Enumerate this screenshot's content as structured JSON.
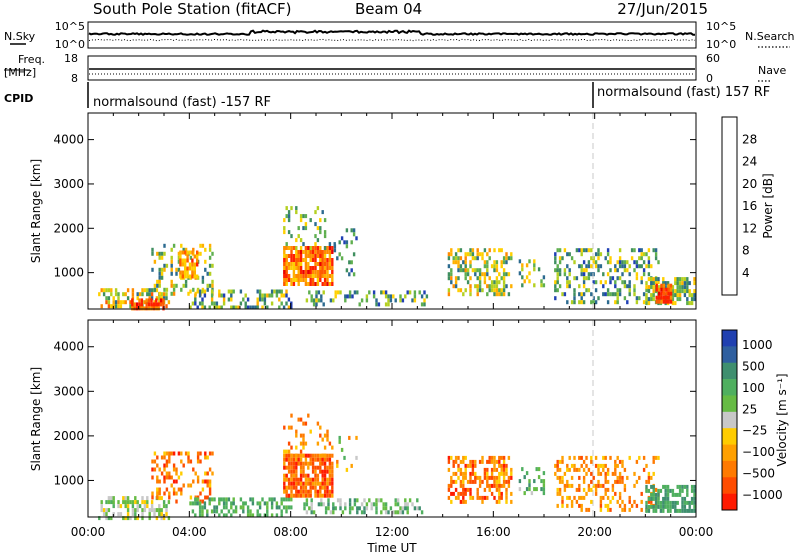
{
  "header": {
    "station": "South Pole Station (fitACF)",
    "beam": "Beam 04",
    "date": "27/Jun/2015"
  },
  "sky_panel": {
    "left_label": "N.Sky",
    "left_ticks": [
      "10^5",
      "10^0"
    ],
    "right_label": "N.Search",
    "right_ticks": [
      "10^5",
      "10^0"
    ]
  },
  "freq_panel": {
    "left_label_line1": "Freq.",
    "left_label_line2": "[MHz]",
    "left_ticks": [
      "18",
      "8"
    ],
    "right_label": "Nave",
    "right_ticks": [
      "60",
      "0"
    ]
  },
  "cpid": {
    "label": "CPID",
    "segments": [
      {
        "text": "normalsound (fast) -157 RF",
        "start_hour": 0
      },
      {
        "text": "normalsound (fast) 157 RF",
        "start_hour": 20
      }
    ]
  },
  "chart_data": [
    {
      "type": "heatmap",
      "quantity": "Power",
      "ylabel": "Slant Range [km]",
      "xlabel": "Time UT",
      "x_ticks": [
        "00:00",
        "04:00",
        "08:00",
        "12:00",
        "16:00",
        "20:00",
        "00:00"
      ],
      "xlim_hours": [
        0,
        24
      ],
      "y_ticks": [
        1000,
        2000,
        3000,
        4000
      ],
      "ylim_km": [
        180,
        4600
      ],
      "colorbar": {
        "label": "Power [dB]",
        "ticks": [
          4,
          8,
          12,
          16,
          20,
          24,
          28
        ],
        "range": [
          0,
          32
        ],
        "colors": [
          "#0000ff",
          "#1f3fb4",
          "#2b6a8f",
          "#3f8f5f",
          "#5faf4f",
          "#b4d020",
          "#ffd000",
          "#ffb000",
          "#ff8c00",
          "#ff5a00",
          "#ff2000",
          "#e80000"
        ]
      },
      "echo_regions": [
        {
          "t0": 0.4,
          "t1": 3.2,
          "r0": 200,
          "r1": 650,
          "density": 0.55,
          "value_range": [
            6,
            26
          ]
        },
        {
          "t0": 1.7,
          "t1": 3.0,
          "r0": 220,
          "r1": 420,
          "density": 0.8,
          "value_range": [
            22,
            30
          ]
        },
        {
          "t0": 2.5,
          "t1": 4.9,
          "r0": 500,
          "r1": 1650,
          "density": 0.3,
          "value_range": [
            6,
            22
          ]
        },
        {
          "t0": 3.6,
          "t1": 4.3,
          "r0": 900,
          "r1": 1500,
          "density": 0.75,
          "value_range": [
            16,
            28
          ]
        },
        {
          "t0": 4.0,
          "t1": 8.0,
          "r0": 250,
          "r1": 620,
          "density": 0.45,
          "value_range": [
            4,
            20
          ]
        },
        {
          "t0": 7.7,
          "t1": 9.6,
          "r0": 700,
          "r1": 1600,
          "density": 0.85,
          "value_range": [
            18,
            30
          ]
        },
        {
          "t0": 7.7,
          "t1": 9.7,
          "r0": 1550,
          "r1": 2500,
          "density": 0.15,
          "value_range": [
            6,
            18
          ]
        },
        {
          "t0": 9.7,
          "t1": 10.6,
          "r0": 1000,
          "r1": 2000,
          "density": 0.2,
          "value_range": [
            4,
            14
          ]
        },
        {
          "t0": 8.5,
          "t1": 13.5,
          "r0": 250,
          "r1": 600,
          "density": 0.35,
          "value_range": [
            4,
            18
          ]
        },
        {
          "t0": 14.2,
          "t1": 16.7,
          "r0": 500,
          "r1": 1550,
          "density": 0.5,
          "value_range": [
            6,
            22
          ]
        },
        {
          "t0": 17.0,
          "t1": 18.0,
          "r0": 700,
          "r1": 1300,
          "density": 0.3,
          "value_range": [
            6,
            20
          ]
        },
        {
          "t0": 18.4,
          "t1": 22.5,
          "r0": 300,
          "r1": 1550,
          "density": 0.35,
          "value_range": [
            4,
            18
          ]
        },
        {
          "t0": 22.0,
          "t1": 23.9,
          "r0": 300,
          "r1": 900,
          "density": 0.65,
          "value_range": [
            6,
            20
          ]
        },
        {
          "t0": 22.4,
          "t1": 23.0,
          "r0": 350,
          "r1": 750,
          "density": 0.85,
          "value_range": [
            22,
            30
          ]
        }
      ]
    },
    {
      "type": "heatmap",
      "quantity": "Velocity",
      "ylabel": "Slant Range [km]",
      "xlabel": "Time UT",
      "x_ticks": [
        "00:00",
        "04:00",
        "08:00",
        "12:00",
        "16:00",
        "20:00",
        "00:00"
      ],
      "xlim_hours": [
        0,
        24
      ],
      "y_ticks": [
        1000,
        2000,
        3000,
        4000
      ],
      "ylim_km": [
        180,
        4600
      ],
      "colorbar": {
        "label": "Velocity [m s⁻¹]",
        "ticks": [
          "1000",
          "500",
          "100",
          "25",
          "−25",
          "−100",
          "−500",
          "−1000"
        ],
        "colors": [
          "#2040b0",
          "#2f5f9f",
          "#3f8f6f",
          "#4faf5f",
          "#66bb44",
          "#c8c8c8",
          "#ffcc00",
          "#ffa000",
          "#ff7a00",
          "#ff4c00",
          "#ff1a00"
        ]
      },
      "echo_regions": [
        {
          "t0": 0.4,
          "t1": 3.2,
          "r0": 200,
          "r1": 650,
          "density": 0.5,
          "value_range": [
            3,
            6
          ]
        },
        {
          "t0": 2.5,
          "t1": 4.9,
          "r0": 500,
          "r1": 1650,
          "density": 0.3,
          "value_range": [
            6,
            10
          ]
        },
        {
          "t0": 4.0,
          "t1": 8.0,
          "r0": 250,
          "r1": 620,
          "density": 0.5,
          "value_range": [
            2,
            4
          ]
        },
        {
          "t0": 7.7,
          "t1": 9.6,
          "r0": 700,
          "r1": 1600,
          "density": 0.85,
          "value_range": [
            7,
            10
          ]
        },
        {
          "t0": 7.7,
          "t1": 9.7,
          "r0": 1550,
          "r1": 2500,
          "density": 0.15,
          "value_range": [
            6,
            9
          ]
        },
        {
          "t0": 9.7,
          "t1": 10.6,
          "r0": 1000,
          "r1": 2000,
          "density": 0.2,
          "value_range": [
            3,
            8
          ]
        },
        {
          "t0": 8.5,
          "t1": 13.5,
          "r0": 250,
          "r1": 600,
          "density": 0.35,
          "value_range": [
            2,
            5
          ]
        },
        {
          "t0": 14.2,
          "t1": 16.7,
          "r0": 500,
          "r1": 1550,
          "density": 0.5,
          "value_range": [
            6,
            10
          ]
        },
        {
          "t0": 17.0,
          "t1": 18.0,
          "r0": 700,
          "r1": 1300,
          "density": 0.3,
          "value_range": [
            2,
            5
          ]
        },
        {
          "t0": 18.4,
          "t1": 22.5,
          "r0": 300,
          "r1": 1550,
          "density": 0.35,
          "value_range": [
            6,
            9
          ]
        },
        {
          "t0": 22.0,
          "t1": 23.9,
          "r0": 300,
          "r1": 900,
          "density": 0.7,
          "value_range": [
            2,
            3
          ]
        }
      ]
    }
  ]
}
